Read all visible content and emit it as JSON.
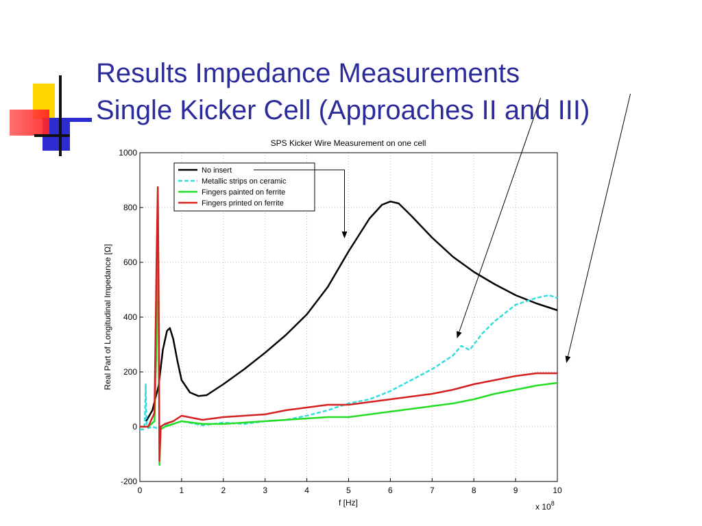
{
  "slide": {
    "title_line1": "Results Impedance Measurements",
    "title_line2": "Single Kicker Cell (Approaches II and III)",
    "title_color": "#2b2b9a"
  },
  "logo": {
    "icon": "colored-squares-cross-logo",
    "colors": [
      "#ffd700",
      "#2b2bd0",
      "#ff3030"
    ]
  },
  "chart_data": {
    "type": "line",
    "title": "SPS Kicker Wire Measurement on one cell",
    "xlabel": "f [Hz]",
    "ylabel": "Real Part of Longitudinal Impedance [Ω]",
    "x_multiplier": "x 10^8",
    "x_multiplier_base": "x 10",
    "x_multiplier_exp": "8",
    "xlim": [
      0,
      10
    ],
    "ylim": [
      -200,
      1000
    ],
    "x_ticks": [
      0,
      1,
      2,
      3,
      4,
      5,
      6,
      7,
      8,
      9,
      10
    ],
    "y_ticks": [
      -200,
      0,
      200,
      400,
      600,
      800,
      1000
    ],
    "grid": true,
    "legend_position": "top-left",
    "series": [
      {
        "name": "No insert",
        "color": "#000000",
        "dash": "solid",
        "x": [
          0.15,
          0.3,
          0.45,
          0.55,
          0.65,
          0.72,
          0.8,
          0.9,
          1.0,
          1.2,
          1.4,
          1.6,
          2.0,
          2.5,
          3.0,
          3.5,
          4.0,
          4.5,
          5.0,
          5.5,
          5.8,
          6.0,
          6.2,
          6.5,
          7.0,
          7.5,
          8.0,
          8.5,
          9.0,
          9.5,
          10.0
        ],
        "y": [
          20,
          60,
          150,
          280,
          350,
          360,
          320,
          240,
          170,
          125,
          112,
          115,
          155,
          210,
          270,
          335,
          410,
          510,
          640,
          760,
          810,
          822,
          815,
          770,
          690,
          620,
          565,
          520,
          480,
          450,
          425
        ]
      },
      {
        "name": "Metallic strips on ceramic",
        "color": "#33dddd",
        "dash": "dashed",
        "x": [
          0,
          0.1,
          0.12,
          0.14,
          0.16,
          0.2,
          0.3,
          0.4,
          0.5,
          0.6,
          0.8,
          1.0,
          1.5,
          2.0,
          2.5,
          3.0,
          3.5,
          4.0,
          4.5,
          5.0,
          5.5,
          6.0,
          6.5,
          7.0,
          7.5,
          7.7,
          7.9,
          8.2,
          8.5,
          9.0,
          9.5,
          9.8,
          10.0
        ],
        "y": [
          -10,
          -10,
          20,
          155,
          10,
          -5,
          0,
          -5,
          0,
          5,
          10,
          20,
          5,
          15,
          10,
          20,
          25,
          40,
          60,
          85,
          100,
          130,
          170,
          210,
          260,
          295,
          280,
          340,
          385,
          445,
          470,
          480,
          470
        ]
      },
      {
        "name": "Fingers painted on ferrite",
        "color": "#22dd22",
        "dash": "solid",
        "x": [
          0,
          0.2,
          0.35,
          0.4,
          0.43,
          0.45,
          0.47,
          0.5,
          0.6,
          0.8,
          1.0,
          1.5,
          2.0,
          2.5,
          3.0,
          3.5,
          4.0,
          4.5,
          5.0,
          5.5,
          6.0,
          6.5,
          7.0,
          7.5,
          8.0,
          8.5,
          9.0,
          9.5,
          10.0
        ],
        "y": [
          0,
          0,
          20,
          300,
          870,
          450,
          -140,
          -10,
          0,
          10,
          20,
          10,
          10,
          15,
          20,
          25,
          30,
          35,
          35,
          45,
          55,
          65,
          75,
          85,
          100,
          120,
          135,
          150,
          160
        ]
      },
      {
        "name": "Fingers printed on ferrite",
        "color": "#d42020",
        "dash": "solid",
        "x": [
          0,
          0.2,
          0.35,
          0.4,
          0.43,
          0.45,
          0.47,
          0.5,
          0.6,
          0.8,
          1.0,
          1.5,
          2.0,
          2.5,
          3.0,
          3.5,
          4.0,
          4.5,
          5.0,
          5.5,
          6.0,
          6.5,
          7.0,
          7.5,
          8.0,
          8.5,
          9.0,
          9.5,
          10.0
        ],
        "y": [
          0,
          0,
          50,
          620,
          875,
          500,
          -125,
          0,
          10,
          20,
          40,
          25,
          35,
          40,
          45,
          60,
          70,
          80,
          80,
          90,
          100,
          110,
          120,
          135,
          155,
          170,
          185,
          195,
          195
        ]
      }
    ],
    "annotations": [
      {
        "type": "arrow",
        "from": [
          5.0,
          840
        ],
        "to": [
          4.92,
          690
        ]
      },
      {
        "type": "arrow",
        "from": [
          9.6,
          1200
        ],
        "to": [
          7.6,
          325
        ]
      },
      {
        "type": "arrow",
        "from": [
          11.75,
          1215
        ],
        "to": [
          10.22,
          235
        ]
      }
    ]
  }
}
